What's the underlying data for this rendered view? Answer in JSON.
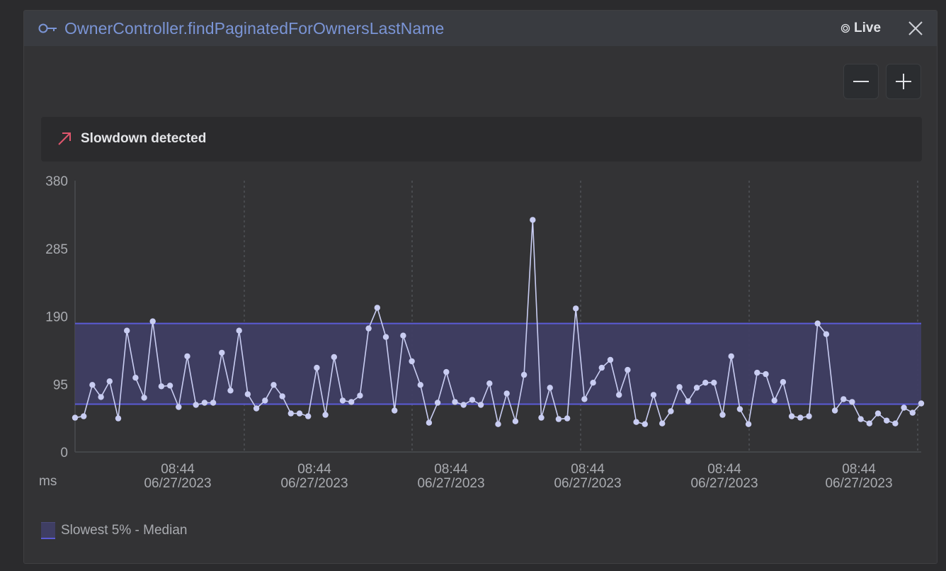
{
  "header": {
    "title": "OwnerController.findPaginatedForOwnersLastName",
    "live_label": "Live"
  },
  "banner": {
    "text": "Slowdown detected"
  },
  "icons": {
    "title": "key-icon",
    "live": "live-radio-icon",
    "close": "close-icon",
    "zoom_out": "minus-icon",
    "zoom_in": "plus-icon",
    "banner": "trend-up-arrow-icon"
  },
  "colors": {
    "title": "#7b95d6",
    "line": "#c9cdf2",
    "band_fill": "#3f3e63",
    "band_edge": "#5b5bd6",
    "alert_arrow": "#e0566d"
  },
  "chart_data": {
    "type": "line",
    "y_unit": "ms",
    "yticks": [
      "380",
      "285",
      "190",
      "95",
      "0"
    ],
    "ylim": [
      0,
      380
    ],
    "x_ticks": [
      {
        "time": "08:44",
        "date": "06/27/2023"
      },
      {
        "time": "08:44",
        "date": "06/27/2023"
      },
      {
        "time": "08:44",
        "date": "06/27/2023"
      },
      {
        "time": "08:44",
        "date": "06/27/2023"
      },
      {
        "time": "08:44",
        "date": "06/27/2023"
      },
      {
        "time": "08:44",
        "date": "06/27/2023"
      }
    ],
    "band": {
      "name": "Slowest 5% - Median",
      "lower": 67,
      "upper": 180
    },
    "series": [
      {
        "values": [
          48,
          50,
          94,
          77,
          99,
          47,
          170,
          104,
          76,
          183,
          92,
          93,
          63,
          134,
          66,
          69,
          69,
          139,
          86,
          170,
          81,
          61,
          72,
          94,
          78,
          54,
          54,
          50,
          118,
          52,
          133,
          72,
          70,
          79,
          173,
          202,
          161,
          58,
          163,
          127,
          94,
          41,
          69,
          112,
          70,
          66,
          73,
          66,
          96,
          39,
          82,
          43,
          108,
          325,
          48,
          90,
          46,
          47,
          201,
          74,
          97,
          118,
          129,
          80,
          115,
          42,
          39,
          80,
          40,
          57,
          91,
          71,
          90,
          97,
          97,
          52,
          134,
          60,
          39,
          111,
          109,
          72,
          98,
          50,
          48,
          50,
          180,
          165,
          58,
          74,
          70,
          46,
          40,
          54,
          44,
          40,
          62,
          55,
          68
        ]
      }
    ],
    "legend": "bottom-left"
  }
}
